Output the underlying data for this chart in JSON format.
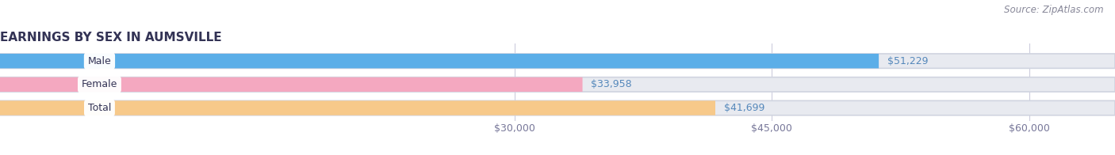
{
  "title": "EARNINGS BY SEX IN AUMSVILLE",
  "source": "Source: ZipAtlas.com",
  "categories": [
    "Male",
    "Female",
    "Total"
  ],
  "values": [
    51229,
    33958,
    41699
  ],
  "bar_colors": [
    "#5baee8",
    "#f4a8c0",
    "#f7c98a"
  ],
  "bar_bg_color": "#e8eaf0",
  "value_label_color": "#5588bb",
  "xmin": 0,
  "xmax": 65000,
  "xticks": [
    30000,
    45000,
    60000
  ],
  "xtick_labels": [
    "$30,000",
    "$45,000",
    "$60,000"
  ],
  "bar_height": 0.62,
  "figsize": [
    14.06,
    1.96
  ],
  "dpi": 100,
  "title_fontsize": 11,
  "label_fontsize": 9,
  "value_fontsize": 9,
  "source_fontsize": 8.5
}
